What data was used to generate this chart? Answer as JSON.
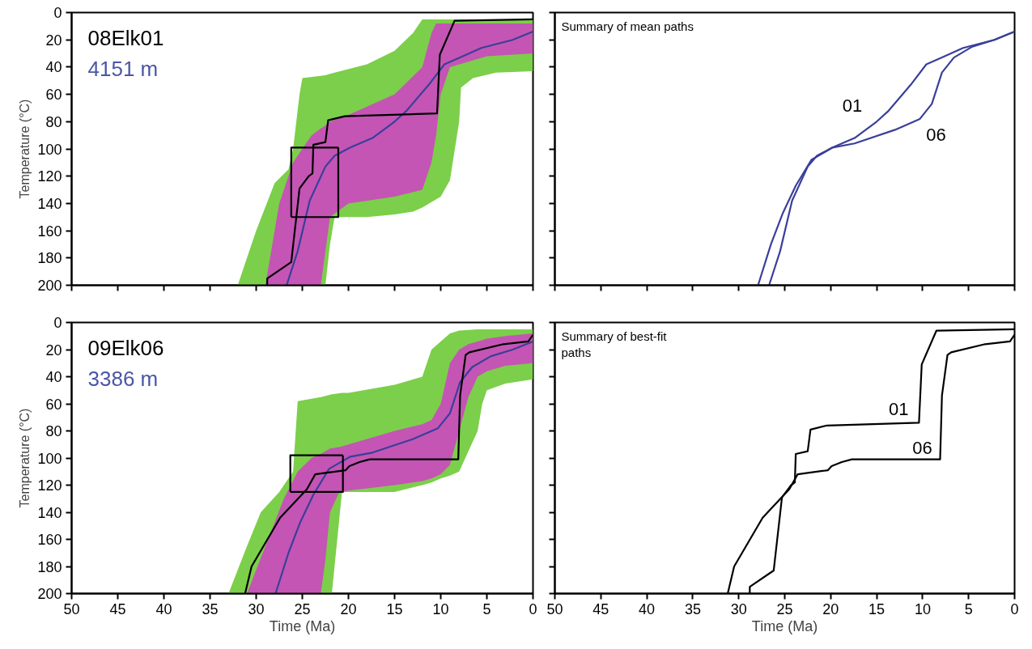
{
  "chart_data": [
    {
      "type": "line",
      "xlim": [
        50,
        0
      ],
      "ylim": [
        200,
        0
      ],
      "xticks": [
        50,
        45,
        40,
        35,
        30,
        25,
        20,
        15,
        10,
        5,
        0
      ],
      "yticks": [
        0,
        20,
        40,
        60,
        80,
        100,
        120,
        140,
        160,
        180,
        200
      ],
      "ylabel": "Temperature (°C)",
      "tick_labels": "y",
      "grid": false,
      "annotations": [
        "08Elk01",
        "4151 m"
      ],
      "series": [
        {
          "type": "line",
          "color": "#7ccf4a",
          "x": [
            32,
            30,
            28,
            26.5,
            26,
            25.3,
            25,
            22.5,
            22,
            21.5,
            18,
            15,
            13,
            12,
            10,
            9,
            8,
            7.8,
            6.5,
            4,
            0
          ],
          "values": [
            null,
            null,
            null,
            null,
            null,
            null,
            null,
            null,
            null,
            null,
            null,
            null,
            null,
            null,
            null,
            null,
            null,
            null,
            null,
            null,
            null
          ],
          "lower": [
            200,
            160,
            125,
            115,
            100,
            60,
            48,
            46,
            45,
            44,
            38,
            28,
            15,
            5,
            5,
            5,
            5,
            5,
            5,
            5,
            5
          ],
          "upper": [
            200,
            200,
            200,
            200,
            200,
            200,
            200,
            200,
            170,
            150,
            150,
            148,
            146,
            143,
            135,
            123,
            80,
            55,
            48,
            44,
            43
          ]
        },
        {
          "type": "line",
          "color": "#c455b4",
          "x": [
            29,
            27.5,
            26,
            24,
            23,
            22.5,
            22,
            20,
            15,
            12,
            11,
            10.5,
            10,
            9,
            5,
            0
          ],
          "values": [
            null,
            null,
            null,
            null,
            null,
            null,
            null,
            null,
            null,
            null,
            null,
            null,
            null,
            null,
            null,
            null
          ],
          "lower": [
            200,
            140,
            110,
            90,
            85,
            83,
            80,
            75,
            60,
            40,
            15,
            8,
            8,
            8,
            8,
            8
          ],
          "upper": [
            200,
            200,
            200,
            200,
            200,
            175,
            150,
            140,
            135,
            130,
            110,
            90,
            60,
            40,
            32,
            30
          ]
        },
        {
          "type": "line",
          "color": "#3a3f9a",
          "x": [
            26.7,
            25.5,
            24.2,
            22.5,
            21.5,
            19.8,
            17.4,
            15.0,
            13.7,
            11.3,
            9.6,
            7.9,
            5.6,
            2.2,
            0
          ],
          "values": [
            200,
            175,
            138,
            113,
            105,
            99,
            92,
            80,
            72,
            53,
            38,
            33,
            26,
            20,
            14
          ]
        },
        {
          "type": "line",
          "color": "#000000",
          "x": [
            28.8,
            28.8,
            26.2,
            25.3,
            24.3,
            23.9,
            23.8,
            22.5,
            22.2,
            20.4,
            10.4,
            10.1,
            8.5,
            0
          ],
          "values": [
            200,
            195,
            183,
            129,
            120,
            118,
            97,
            95,
            79,
            76,
            74,
            31,
            6,
            5
          ]
        },
        {
          "type": "line",
          "color": "#000000",
          "x": [
            26.2,
            26.2,
            21.1
          ],
          "values": [
            150,
            99,
            99
          ]
        },
        {
          "type": "line",
          "color": "#000000",
          "x": [
            26.2,
            21.1,
            21.1
          ],
          "values": [
            150,
            150,
            99
          ]
        }
      ]
    },
    {
      "type": "line",
      "title": "Summary of mean paths",
      "xlim": [
        50,
        0
      ],
      "ylim": [
        200,
        0
      ],
      "xticks": [
        50,
        45,
        40,
        35,
        30,
        25,
        20,
        15,
        10,
        5,
        0
      ],
      "yticks": [
        0,
        20,
        40,
        60,
        80,
        100,
        120,
        140,
        160,
        180,
        200
      ],
      "tick_labels": false,
      "grid": false,
      "series": [
        {
          "type": "line",
          "name": "01",
          "color": "#3a3f9a",
          "x": [
            26.7,
            25.5,
            24.2,
            22.5,
            21.5,
            19.8,
            17.4,
            15.0,
            13.7,
            11.3,
            9.6,
            7.9,
            5.6,
            2.2,
            0
          ],
          "values": [
            200,
            175,
            138,
            113,
            105,
            99,
            92,
            80,
            72,
            53,
            38,
            33,
            26,
            20,
            14
          ]
        },
        {
          "type": "line",
          "name": "06",
          "color": "#3a3f9a",
          "x": [
            27.9,
            26.5,
            25.2,
            23.8,
            22.1,
            19.8,
            17.4,
            13.0,
            10.3,
            9.0,
            7.9,
            6.6,
            4.6,
            2.2,
            0
          ],
          "values": [
            200,
            170,
            147,
            127,
            108,
            99,
            96,
            86,
            78,
            67,
            44,
            33,
            25,
            20,
            14
          ]
        }
      ]
    },
    {
      "type": "line",
      "xlim": [
        50,
        0
      ],
      "ylim": [
        200,
        0
      ],
      "xticks": [
        50,
        45,
        40,
        35,
        30,
        25,
        20,
        15,
        10,
        5,
        0
      ],
      "yticks": [
        0,
        20,
        40,
        60,
        80,
        100,
        120,
        140,
        160,
        180,
        200
      ],
      "xlabel": "Time (Ma)",
      "ylabel": "Temperature (°C)",
      "grid": false,
      "annotations": [
        "09Elk06",
        "3386 m"
      ],
      "series": [
        {
          "type": "line",
          "color": "#7ccf4a",
          "x": [
            33,
            31,
            29.5,
            27.5,
            26,
            25.5,
            23,
            21.8,
            20.7,
            20,
            15,
            12,
            11,
            10,
            9,
            8,
            6,
            5.5,
            5,
            3,
            0
          ],
          "values": [
            null,
            null,
            null,
            null,
            null,
            null,
            null,
            null,
            null,
            null,
            null,
            null,
            null,
            null,
            null,
            null,
            null,
            null,
            null,
            null,
            null
          ],
          "lower": [
            200,
            165,
            140,
            125,
            110,
            58,
            55,
            53,
            52,
            52,
            46,
            40,
            20,
            14,
            8,
            6,
            5,
            5,
            5,
            5,
            5
          ],
          "upper": [
            200,
            200,
            200,
            200,
            200,
            200,
            200,
            200,
            125,
            125,
            125,
            120,
            118,
            115,
            113,
            110,
            80,
            60,
            50,
            45,
            42
          ]
        },
        {
          "type": "line",
          "color": "#c455b4",
          "x": [
            31,
            29,
            27,
            25.5,
            24,
            23,
            22.5,
            22,
            21,
            20,
            15,
            12,
            11,
            10,
            9,
            8,
            7,
            6,
            5,
            3,
            0
          ],
          "values": [
            null,
            null,
            null,
            null,
            null,
            null,
            null,
            null,
            null,
            null,
            null,
            null,
            null,
            null,
            null,
            null,
            null,
            null,
            null,
            null,
            null
          ],
          "lower": [
            200,
            165,
            130,
            110,
            100,
            97,
            95,
            93,
            92,
            90,
            80,
            75,
            72,
            60,
            30,
            20,
            16,
            14,
            12,
            10,
            8
          ],
          "upper": [
            200,
            200,
            200,
            200,
            200,
            200,
            175,
            140,
            125,
            124,
            120,
            117,
            115,
            112,
            105,
            80,
            55,
            40,
            36,
            32,
            30
          ]
        },
        {
          "type": "line",
          "color": "#3a3f9a",
          "x": [
            27.9,
            26.5,
            25.2,
            23.8,
            22.1,
            19.8,
            17.4,
            13.0,
            10.3,
            9.0,
            7.9,
            6.6,
            4.6,
            2.2,
            0
          ],
          "values": [
            200,
            170,
            147,
            127,
            108,
            99,
            96,
            86,
            78,
            67,
            44,
            33,
            25,
            20,
            14
          ]
        },
        {
          "type": "line",
          "color": "#000000",
          "x": [
            31.2,
            30.5,
            27.4,
            24.5,
            23.6,
            22.5,
            20.3,
            19.9,
            18.8,
            17.7,
            8.1,
            7.9,
            7.3,
            6.9,
            3.2,
            0.5,
            0
          ],
          "values": [
            200,
            180,
            144,
            123,
            112,
            111,
            109,
            106,
            103,
            101,
            101,
            54,
            24,
            22,
            16,
            14,
            9
          ]
        },
        {
          "type": "line",
          "color": "#000000",
          "x": [
            26.3,
            26.3,
            20.6
          ],
          "values": [
            125,
            98,
            98
          ]
        },
        {
          "type": "line",
          "color": "#000000",
          "x": [
            26.3,
            20.6,
            20.6
          ],
          "values": [
            125,
            125,
            98
          ]
        }
      ]
    },
    {
      "type": "line",
      "title": "Summary of best-fit\npaths",
      "xlim": [
        50,
        0
      ],
      "ylim": [
        200,
        0
      ],
      "xticks": [
        50,
        45,
        40,
        35,
        30,
        25,
        20,
        15,
        10,
        5,
        0
      ],
      "yticks": [
        0,
        20,
        40,
        60,
        80,
        100,
        120,
        140,
        160,
        180,
        200
      ],
      "xlabel": "Time (Ma)",
      "tick_labels": "x",
      "grid": false,
      "series": [
        {
          "type": "line",
          "name": "01",
          "color": "#000000",
          "x": [
            28.8,
            28.8,
            26.2,
            25.3,
            24.3,
            23.9,
            23.8,
            22.5,
            22.2,
            20.4,
            10.4,
            10.1,
            8.5,
            0
          ],
          "values": [
            200,
            195,
            183,
            129,
            120,
            118,
            97,
            95,
            79,
            76,
            74,
            31,
            6,
            5
          ]
        },
        {
          "type": "line",
          "name": "06",
          "color": "#000000",
          "x": [
            31.2,
            30.5,
            27.4,
            24.5,
            23.6,
            22.5,
            20.3,
            19.9,
            18.8,
            17.7,
            8.1,
            7.9,
            7.3,
            6.9,
            3.2,
            0.5,
            0
          ],
          "values": [
            200,
            180,
            144,
            123,
            112,
            111,
            109,
            106,
            103,
            101,
            101,
            54,
            24,
            22,
            16,
            14,
            9
          ]
        }
      ]
    }
  ]
}
